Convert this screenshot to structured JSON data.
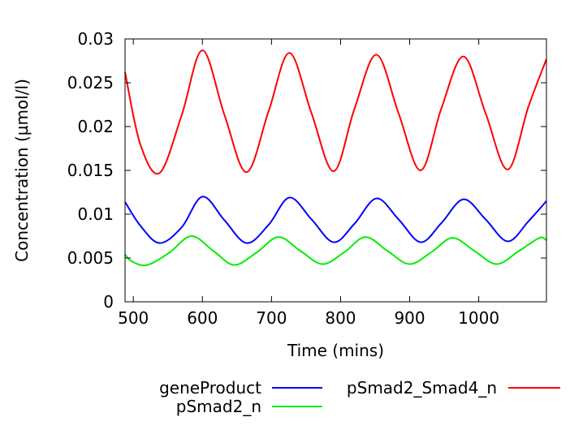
{
  "chart_data": {
    "type": "line",
    "title": "",
    "xlabel": "Time (mins)",
    "ylabel": "Concentration (µmol/l)",
    "xlim": [
      488,
      1098
    ],
    "ylim": [
      0,
      0.03
    ],
    "xticks": [
      500,
      600,
      700,
      800,
      900,
      1000
    ],
    "xtick_labels": [
      "500",
      "600",
      "700",
      "800",
      "900",
      "1000"
    ],
    "yticks": [
      0,
      0.005,
      0.01,
      0.015,
      0.02,
      0.025,
      0.03
    ],
    "ytick_labels": [
      "0",
      "0.005",
      "0.01",
      "0.015",
      "0.02",
      "0.025",
      "0.03"
    ],
    "grid": false,
    "legend_position": "bottom",
    "series": [
      {
        "name": "geneProduct",
        "color": "#0000ff",
        "x": [
          488,
          510,
          538,
          570,
          600,
          632,
          664,
          696,
          726,
          758,
          790,
          820,
          852,
          884,
          916,
          946,
          978,
          1010,
          1042,
          1072,
          1098
        ],
        "y": [
          0.0114,
          0.0087,
          0.0067,
          0.0085,
          0.012,
          0.0093,
          0.0067,
          0.0088,
          0.0119,
          0.0094,
          0.0068,
          0.0089,
          0.0118,
          0.0094,
          0.0068,
          0.009,
          0.0117,
          0.0094,
          0.0069,
          0.0092,
          0.0115
        ]
      },
      {
        "name": "pSmad2_Smad4_n",
        "color": "#ff0000",
        "x": [
          488,
          510,
          538,
          570,
          600,
          632,
          664,
          696,
          726,
          758,
          790,
          820,
          852,
          884,
          916,
          946,
          978,
          1010,
          1042,
          1072,
          1098
        ],
        "y": [
          0.0262,
          0.018,
          0.0147,
          0.0213,
          0.0287,
          0.0213,
          0.0148,
          0.0218,
          0.0284,
          0.0215,
          0.0149,
          0.022,
          0.0282,
          0.0215,
          0.015,
          0.0221,
          0.028,
          0.0215,
          0.0151,
          0.0223,
          0.0277
        ]
      },
      {
        "name": "pSmad2_n",
        "color": "#00ee00",
        "x": [
          488,
          498,
          520,
          552,
          584,
          616,
          646,
          678,
          710,
          742,
          774,
          806,
          836,
          868,
          900,
          932,
          962,
          994,
          1026,
          1058,
          1088,
          1098
        ],
        "y": [
          0.0054,
          0.0046,
          0.0042,
          0.0056,
          0.0075,
          0.0058,
          0.0042,
          0.0056,
          0.0074,
          0.0058,
          0.0043,
          0.0057,
          0.0074,
          0.0058,
          0.0043,
          0.0057,
          0.0073,
          0.0058,
          0.0043,
          0.0058,
          0.0073,
          0.007
        ]
      }
    ]
  }
}
